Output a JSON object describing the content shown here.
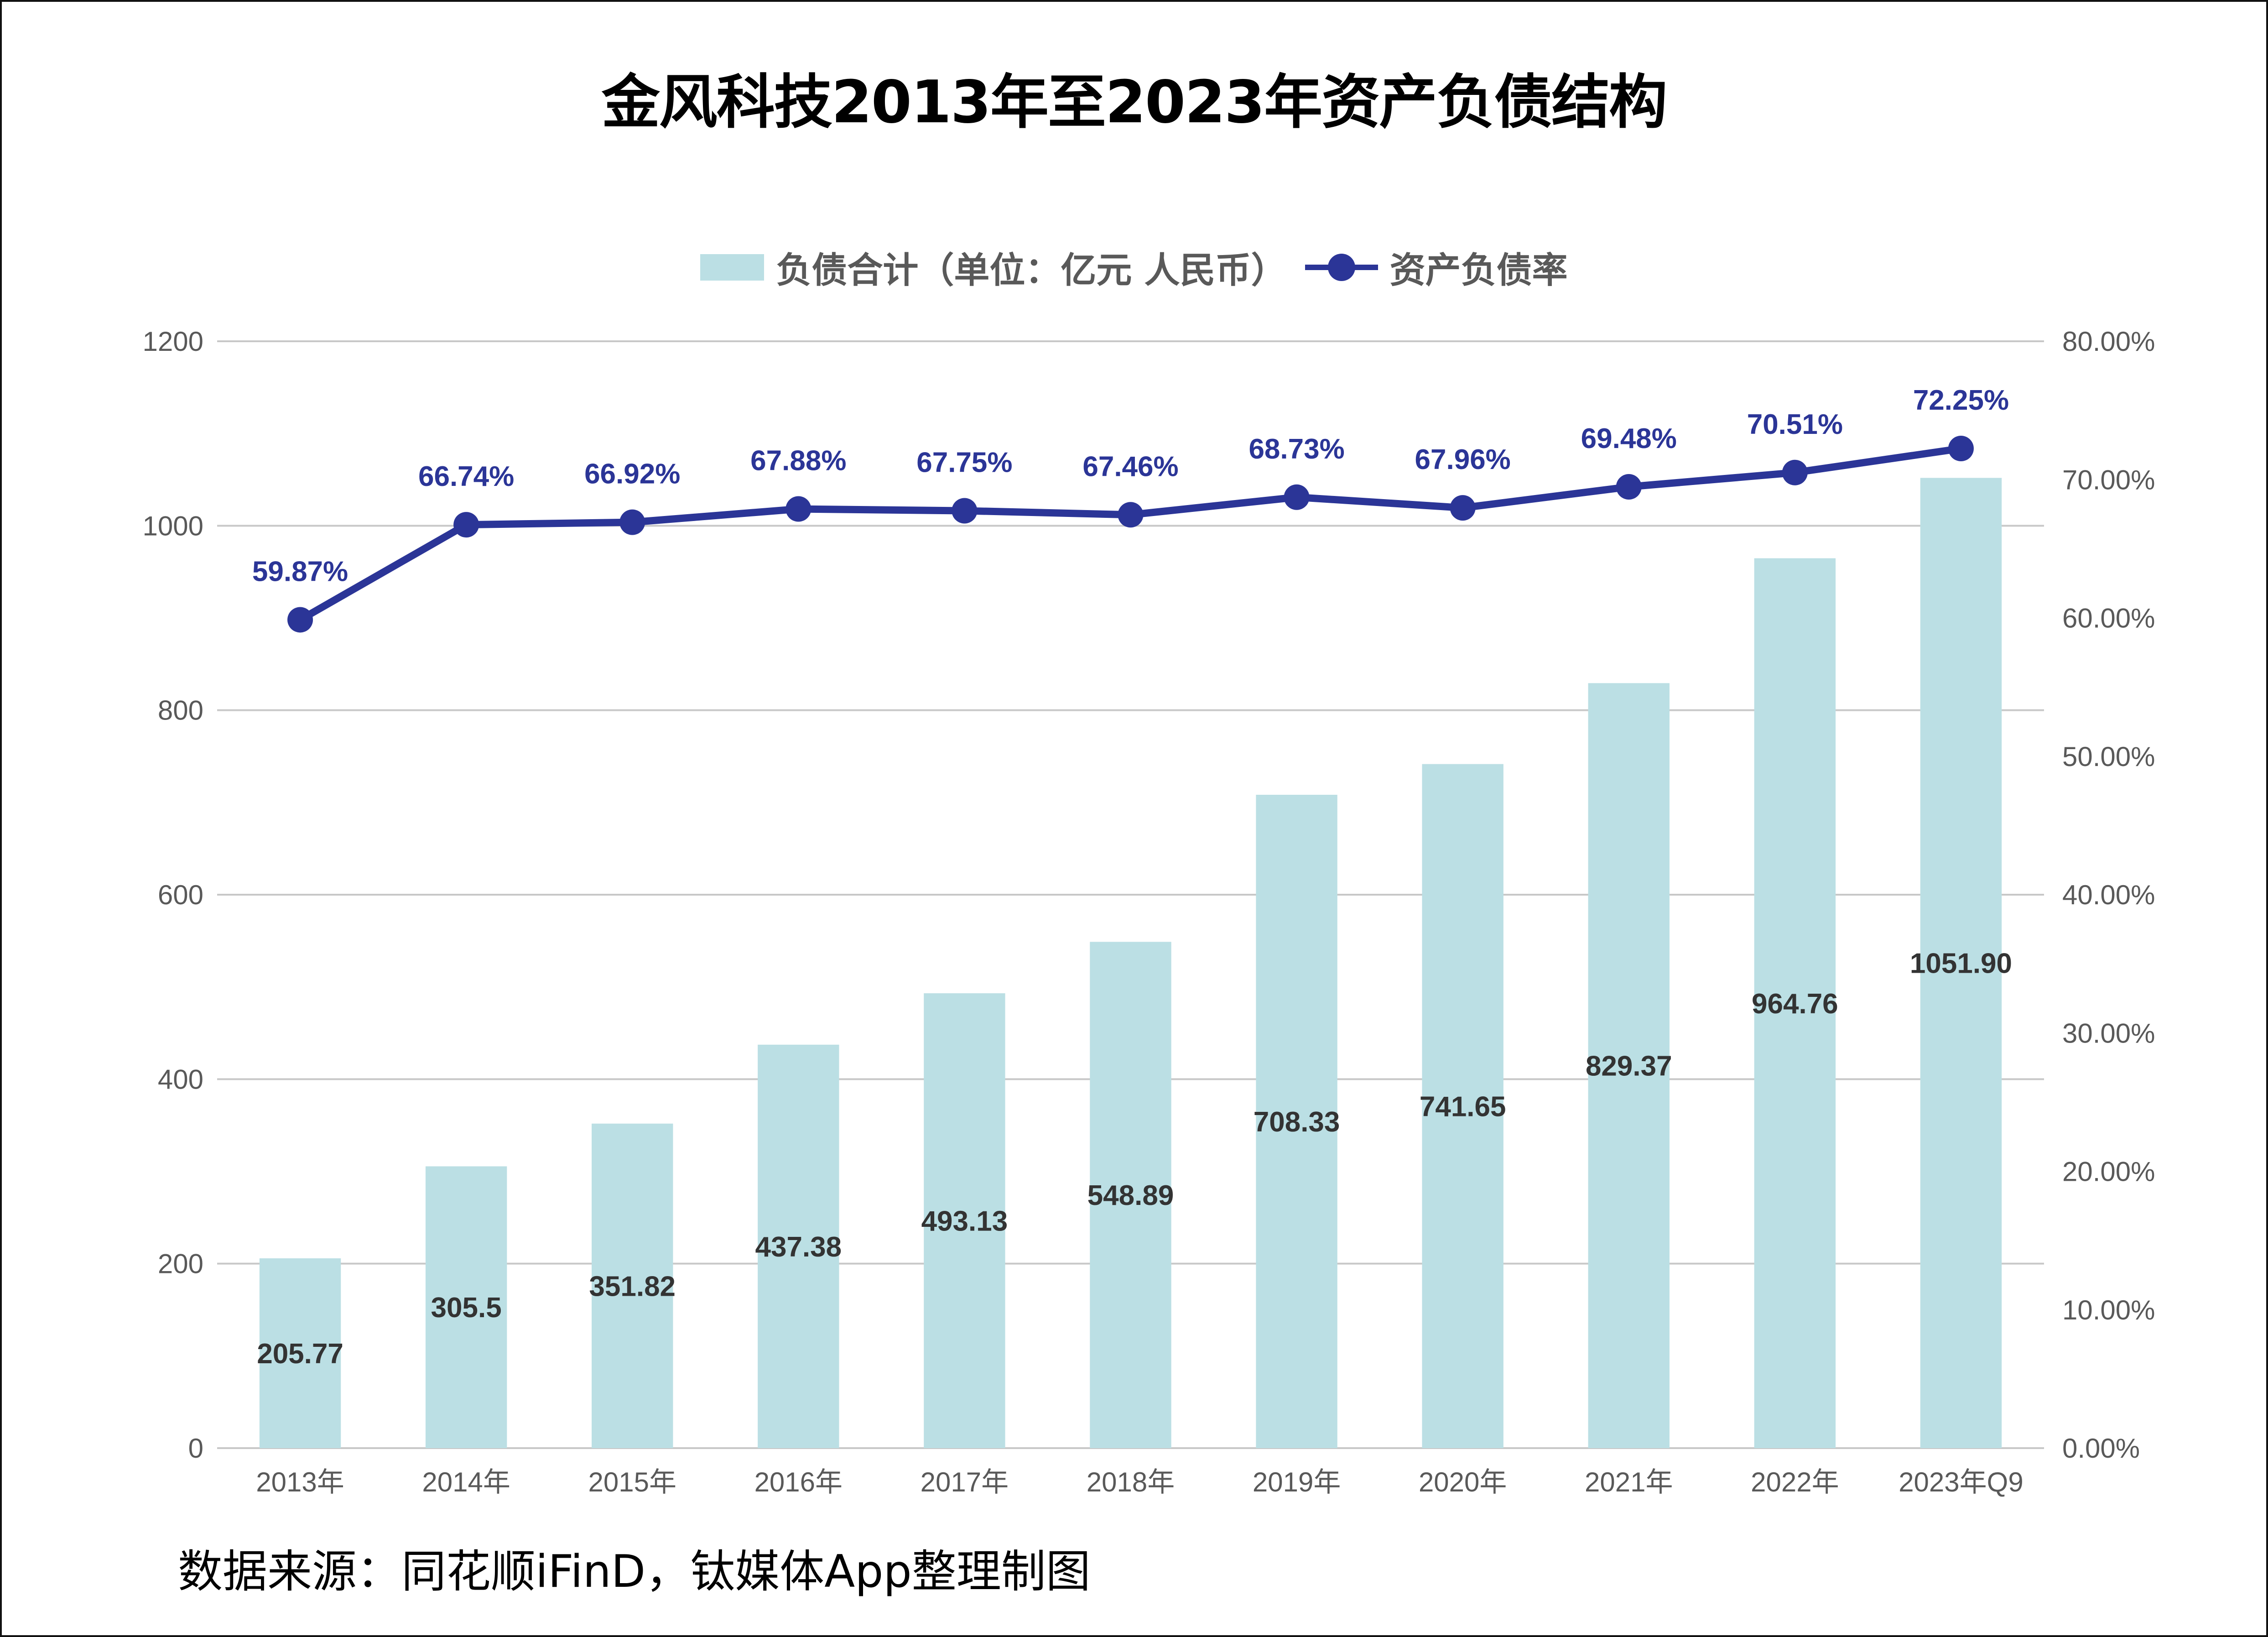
{
  "title": "金风科技2013年至2023年资产负债结构",
  "legend": {
    "bar_label": "负债合计（单位：亿元 人民币）",
    "line_label": "资产负债率"
  },
  "source": "数据来源：同花顺iFinD，钛媒体App整理制图",
  "colors": {
    "bar": "#bbdfe4",
    "line": "#2b3597",
    "grid": "#c8c8c8",
    "bar_label": "#333333",
    "line_label": "#2b3597",
    "axis_text": "#595959"
  },
  "chart_data": {
    "type": "bar+line",
    "title": "金风科技2013年至2023年资产负债结构",
    "categories": [
      "2013年",
      "2014年",
      "2015年",
      "2016年",
      "2017年",
      "2018年",
      "2019年",
      "2020年",
      "2021年",
      "2022年",
      "2023年Q9"
    ],
    "series": [
      {
        "name": "负债合计（单位：亿元 人民币）",
        "type": "bar",
        "axis": "left",
        "values": [
          205.77,
          305.5,
          351.82,
          437.38,
          493.13,
          548.89,
          708.33,
          741.65,
          829.37,
          964.76,
          1051.9
        ],
        "labels": [
          "205.77",
          "305.5",
          "351.82",
          "437.38",
          "493.13",
          "548.89",
          "708.33",
          "741.65",
          "829.37",
          "964.76",
          "1051.90"
        ]
      },
      {
        "name": "资产负债率",
        "type": "line",
        "axis": "right",
        "values": [
          59.87,
          66.74,
          66.92,
          67.88,
          67.75,
          67.46,
          68.73,
          67.96,
          69.48,
          70.51,
          72.25
        ],
        "labels": [
          "59.87%",
          "66.74%",
          "66.92%",
          "67.88%",
          "67.75%",
          "67.46%",
          "68.73%",
          "67.96%",
          "69.48%",
          "70.51%",
          "72.25%"
        ]
      }
    ],
    "y_left": {
      "min": 0,
      "max": 1200,
      "step": 200,
      "ticks": [
        "0",
        "200",
        "400",
        "600",
        "800",
        "1000",
        "1200"
      ]
    },
    "y_right": {
      "min": 0,
      "max": 80,
      "step": 10,
      "ticks": [
        "0.00%",
        "10.00%",
        "20.00%",
        "30.00%",
        "40.00%",
        "50.00%",
        "60.00%",
        "70.00%",
        "80.00%"
      ]
    },
    "grid": true,
    "legend_position": "top-center",
    "xlabel": "",
    "ylabel": ""
  }
}
